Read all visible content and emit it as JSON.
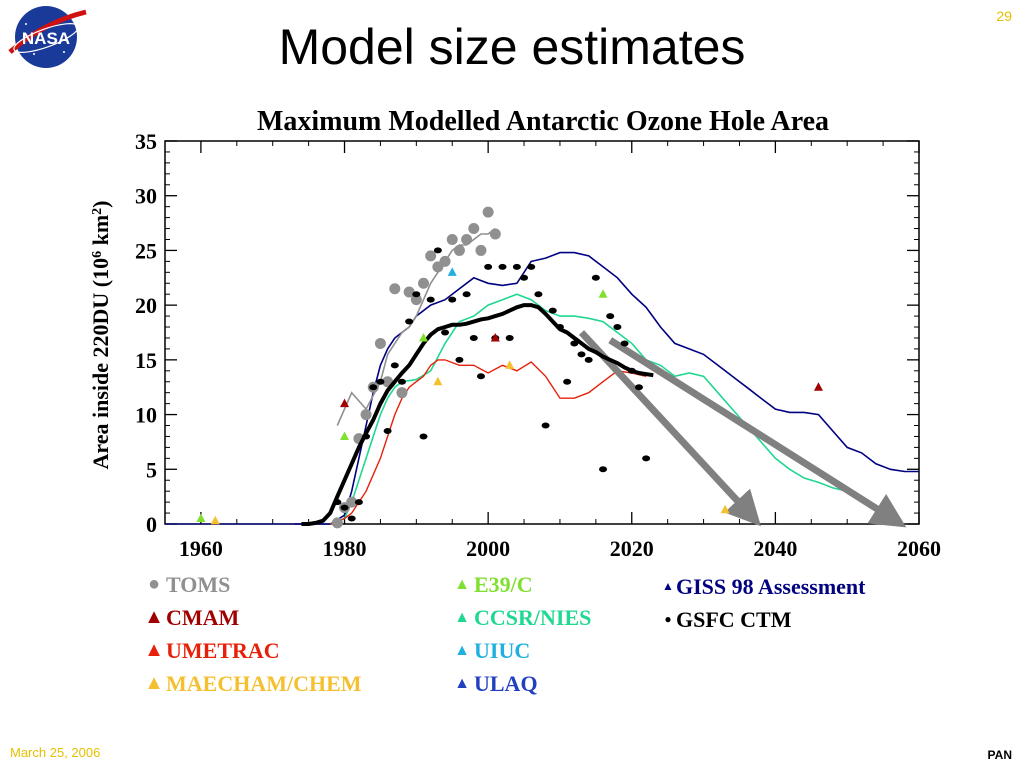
{
  "slide": {
    "title": "Model size estimates",
    "page_number": "29",
    "date": "March 25, 2006",
    "footer_tag": "PAN",
    "logo_text": "NASA"
  },
  "colors": {
    "toms": "#909090",
    "cmam": "#a00000",
    "umetrac": "#e8200a",
    "maecham": "#f5c030",
    "e39c": "#80e030",
    "ccsr": "#20d890",
    "uiuc": "#20b0e0",
    "ulaq": "#2040c0",
    "giss": "#000080",
    "gsfc": "#000000",
    "arrow": "#808080"
  },
  "chart_data": {
    "type": "line",
    "title": "Maximum Modelled Antarctic Ozone Hole Area",
    "ylabel_prefix": "Area inside 220DU (10",
    "ylabel_sup1": "6",
    "ylabel_mid": " km",
    "ylabel_sup2": "2",
    "ylabel_suffix": ")",
    "xlim": [
      1955,
      2060
    ],
    "ylim": [
      0,
      35
    ],
    "x_ticks": [
      "1960",
      "1980",
      "2000",
      "2020",
      "2040",
      "2060"
    ],
    "x_tick_values": [
      1960,
      1980,
      2000,
      2020,
      2040,
      2060
    ],
    "y_ticks": [
      "0",
      "5",
      "10",
      "15",
      "20",
      "25",
      "30",
      "35"
    ],
    "y_tick_values": [
      0,
      5,
      10,
      15,
      20,
      25,
      30,
      35
    ],
    "legend": {
      "col1": [
        "TOMS",
        "CMAM",
        "UMETRAC",
        "MAECHAM/CHEM"
      ],
      "col2": [
        "E39/C",
        "CCSR/NIES",
        "UIUC",
        "ULAQ"
      ],
      "col3": [
        "GISS 98 Assessment",
        "GSFC CTM"
      ]
    },
    "series": [
      {
        "name": "TOMS",
        "kind": "scatter",
        "color_key": "toms",
        "x": [
          1979,
          1980,
          1981,
          1982,
          1983,
          1984,
          1985,
          1986,
          1987,
          1988,
          1989,
          1990,
          1991,
          1992,
          1993,
          1994,
          1995,
          1996,
          1997,
          1998,
          1999,
          2000,
          2001
        ],
        "y": [
          0.1,
          1.5,
          2.0,
          7.8,
          10.0,
          12.5,
          16.5,
          13.0,
          21.5,
          12.0,
          21.2,
          20.5,
          22.0,
          24.5,
          23.5,
          24.0,
          26.0,
          25.0,
          26.0,
          27.0,
          25.0,
          28.5,
          26.5
        ]
      },
      {
        "name": "TOMS",
        "kind": "line",
        "color_key": "toms",
        "x": [
          1979,
          1981,
          1983,
          1985,
          1986,
          1987,
          1988,
          1989,
          1990,
          1991,
          1992,
          1993,
          1994,
          1995,
          1996,
          1997,
          1998,
          1999,
          2000,
          2001
        ],
        "y": [
          9.0,
          12.0,
          10.5,
          13.0,
          15.5,
          16.5,
          17.5,
          18.0,
          19.0,
          20.5,
          22.0,
          23.0,
          24.0,
          25.0,
          25.5,
          25.5,
          26.0,
          26.5,
          26.5,
          27.0
        ]
      },
      {
        "name": "GSFC CTM",
        "kind": "scatter",
        "color_key": "gsfc",
        "x": [
          1979,
          1980,
          1981,
          1982,
          1983,
          1984,
          1985,
          1986,
          1987,
          1988,
          1989,
          1990,
          1991,
          1992,
          1993,
          1994,
          1995,
          1996,
          1997,
          1998,
          1999,
          2000,
          2001,
          2002,
          2003,
          2004,
          2005,
          2006,
          2007,
          2008,
          2009,
          2010,
          2011,
          2012,
          2013,
          2014,
          2015,
          2016,
          2017,
          2018,
          2019,
          2020,
          2021,
          2022
        ],
        "y": [
          2.0,
          1.5,
          0.5,
          2.0,
          8.0,
          12.5,
          13.0,
          8.5,
          14.5,
          13.0,
          18.5,
          21.0,
          8.0,
          20.5,
          25.0,
          17.5,
          20.5,
          15.0,
          21.0,
          17.0,
          13.5,
          23.5,
          17.0,
          23.5,
          17.0,
          23.5,
          22.5,
          23.5,
          21.0,
          9.0,
          19.5,
          18.0,
          13.0,
          16.5,
          15.5,
          15.0,
          22.5,
          5.0,
          19.0,
          18.0,
          16.5,
          14.0,
          12.5,
          6.0
        ]
      },
      {
        "name": "GSFC CTM mean",
        "kind": "line",
        "color_key": "gsfc",
        "x": [
          1974,
          1975,
          1976,
          1977,
          1978,
          1979,
          1980,
          1981,
          1982,
          1983,
          1984,
          1985,
          1986,
          1987,
          1988,
          1989,
          1990,
          1991,
          1992,
          1993,
          1994,
          1995,
          1996,
          1997,
          1998,
          1999,
          2000,
          2001,
          2002,
          2003,
          2004,
          2005,
          2006,
          2007,
          2008,
          2009,
          2010,
          2011,
          2012,
          2013,
          2014,
          2015,
          2016,
          2017,
          2018,
          2019,
          2020,
          2021,
          2022,
          2023
        ],
        "y": [
          0,
          0,
          0.1,
          0.3,
          1.0,
          2.5,
          4.0,
          5.5,
          7.0,
          8.3,
          9.5,
          11.0,
          12.2,
          13.0,
          13.8,
          14.5,
          15.5,
          16.5,
          17.3,
          17.8,
          18.0,
          18.2,
          18.2,
          18.3,
          18.5,
          18.7,
          18.8,
          19.0,
          19.2,
          19.5,
          19.8,
          20.0,
          20.0,
          19.8,
          19.2,
          18.5,
          17.8,
          17.5,
          17.0,
          16.5,
          16.0,
          15.7,
          15.3,
          15.0,
          14.7,
          14.3,
          14.0,
          13.8,
          13.7,
          13.6
        ]
      },
      {
        "name": "GISS 98 Assessment",
        "kind": "line",
        "color_key": "giss",
        "x": [
          1973,
          1975,
          1978,
          1980,
          1981,
          1982,
          1983,
          1984,
          1985,
          1986,
          1987,
          1988,
          1989,
          1990,
          1992,
          1994,
          1996,
          1998,
          2000,
          2002,
          2004,
          2006,
          2008,
          2010,
          2012,
          2014,
          2016,
          2018,
          2020,
          2022,
          2024,
          2026,
          2028,
          2030,
          2032,
          2034,
          2036,
          2038,
          2040,
          2042,
          2044,
          2046,
          2048,
          2050,
          2052,
          2054,
          2056,
          2058,
          2060
        ],
        "y": [
          0,
          0,
          0,
          0.8,
          3.0,
          6.0,
          9.0,
          12.0,
          14.5,
          16.0,
          17.0,
          17.5,
          18.0,
          19.0,
          20.0,
          20.5,
          21.5,
          22.5,
          22.0,
          21.8,
          22.0,
          24.0,
          24.3,
          24.8,
          24.8,
          24.5,
          23.5,
          22.5,
          21.0,
          19.8,
          18.0,
          16.5,
          16.0,
          15.5,
          14.5,
          13.5,
          12.5,
          11.5,
          10.5,
          10.2,
          10.2,
          10.0,
          8.5,
          7.0,
          6.5,
          5.5,
          5.0,
          4.8,
          4.8
        ]
      },
      {
        "name": "CCSR/NIES",
        "kind": "line",
        "color_key": "ccsr",
        "x": [
          1978,
          1980,
          1981,
          1982,
          1983,
          1984,
          1985,
          1986,
          1987,
          1988,
          1990,
          1992,
          1994,
          1996,
          1998,
          2000,
          2002,
          2004,
          2006,
          2008,
          2010,
          2012,
          2014,
          2016,
          2018,
          2020,
          2022,
          2024,
          2026,
          2028,
          2030,
          2032,
          2034,
          2036,
          2038,
          2040,
          2042,
          2044,
          2046,
          2048,
          2050
        ],
        "y": [
          0,
          0.5,
          2.0,
          4.0,
          6.0,
          8.0,
          10.0,
          11.5,
          12.5,
          13.0,
          13.2,
          14.0,
          16.5,
          18.5,
          19.0,
          20.0,
          20.5,
          21.0,
          20.5,
          19.5,
          19.0,
          19.0,
          18.8,
          18.5,
          17.5,
          16.5,
          15.0,
          14.5,
          13.5,
          13.8,
          13.5,
          12.0,
          10.5,
          9.0,
          7.5,
          6.0,
          5.0,
          4.2,
          3.8,
          3.3,
          3.0
        ]
      },
      {
        "name": "UMETRAC",
        "kind": "line",
        "color_key": "umetrac",
        "x": [
          1978,
          1980,
          1981,
          1982,
          1983,
          1984,
          1985,
          1986,
          1987,
          1988,
          1989,
          1990,
          1991,
          1992,
          1993,
          1994,
          1996,
          1998,
          2000,
          2002,
          2004,
          2006,
          2008,
          2010,
          2012,
          2014,
          2016,
          2018,
          2020,
          2022
        ],
        "y": [
          0,
          0.5,
          1.0,
          2.0,
          3.0,
          4.5,
          6.0,
          8.0,
          10.0,
          11.5,
          12.5,
          13.0,
          13.5,
          14.5,
          15.0,
          15.0,
          14.5,
          14.5,
          13.8,
          14.5,
          14.0,
          14.8,
          13.5,
          11.5,
          11.5,
          12.0,
          13.0,
          14.0,
          13.8,
          13.5
        ]
      },
      {
        "name": "CMAM",
        "kind": "triangles",
        "color_key": "cmam",
        "x": [
          1980,
          2001,
          2046
        ],
        "y": [
          11.0,
          17.0,
          12.5
        ]
      },
      {
        "name": "E39/C",
        "kind": "triangles",
        "color_key": "e39c",
        "x": [
          1960,
          1980,
          1991,
          2016
        ],
        "y": [
          0.5,
          8.0,
          17.0,
          21.0
        ]
      },
      {
        "name": "MAECHAM/CHEM",
        "kind": "triangles",
        "color_key": "maecham",
        "x": [
          1962,
          1993,
          2003,
          2033
        ],
        "y": [
          0.3,
          13.0,
          14.5,
          1.3
        ]
      },
      {
        "name": "UIUC",
        "kind": "triangles",
        "color_key": "uiuc",
        "x": [
          1995
        ],
        "y": [
          23.0
        ]
      }
    ],
    "arrows": [
      {
        "from": [
          2013,
          17.5
        ],
        "to": [
          2037,
          0.5
        ]
      },
      {
        "from": [
          2017,
          16.8
        ],
        "to": [
          2057,
          0.2
        ]
      }
    ]
  }
}
